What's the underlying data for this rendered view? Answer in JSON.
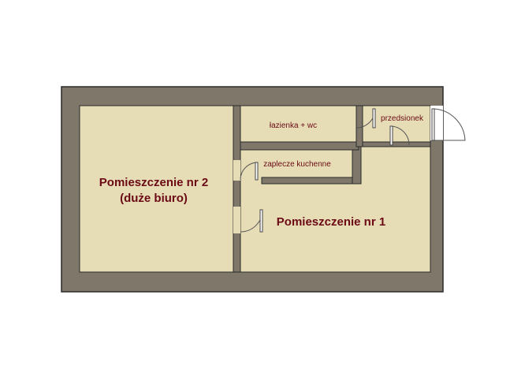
{
  "plan": {
    "rooms": {
      "room2": {
        "line1": "Pomieszczenie nr 2",
        "line2": "(duże biuro)"
      },
      "room1": {
        "label": "Pomieszczenie nr 1"
      },
      "bathroom": {
        "label": "łazienka + wc"
      },
      "vestibule": {
        "label": "przedsionek"
      },
      "kitchen": {
        "label": "zaplecze kuchenne"
      }
    },
    "colors": {
      "wall": "#7e776a",
      "floor": "#e6ddb7",
      "outline": "#2a2a2a",
      "label": "#6b0a14"
    }
  }
}
